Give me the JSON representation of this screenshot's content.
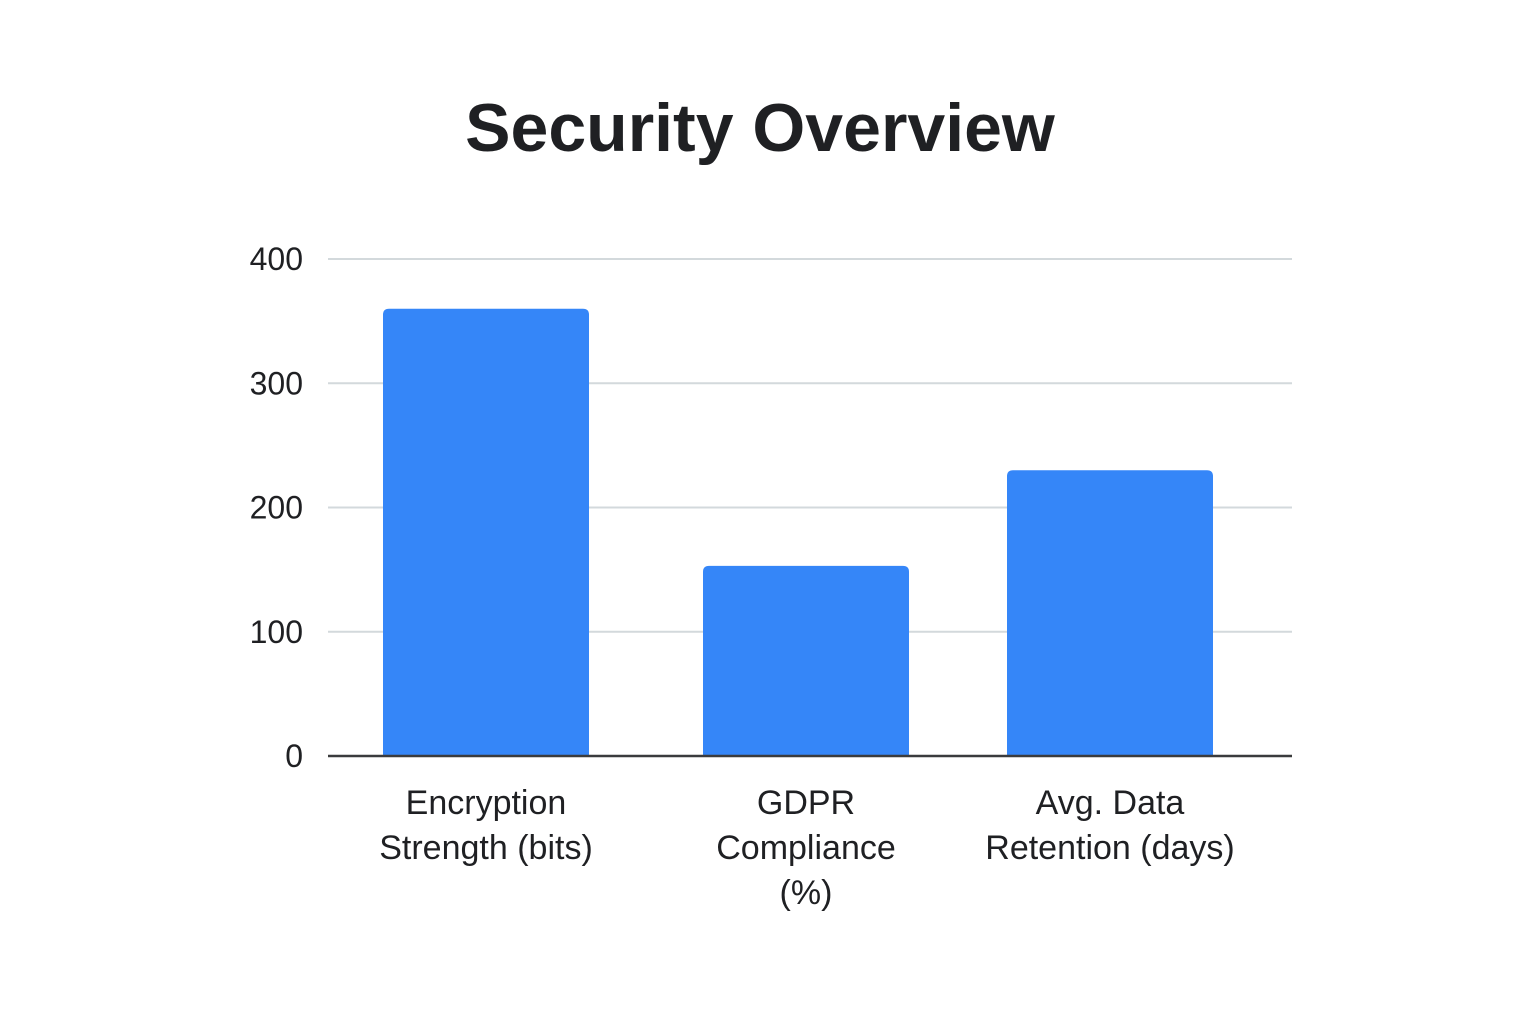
{
  "chart_data": {
    "type": "bar",
    "title": "Security Overview",
    "categories": [
      [
        "Encryption",
        "Strength (bits)"
      ],
      [
        "GDPR",
        "Compliance",
        "(%)"
      ],
      [
        "Avg. Data",
        "Retention (days)"
      ]
    ],
    "values": [
      360,
      153,
      230
    ],
    "ylim": [
      0,
      400
    ],
    "yticks": [
      0,
      100,
      200,
      300,
      400
    ],
    "xlabel": "",
    "ylabel": "",
    "grid": true,
    "bar_color": "#3586f8",
    "grid_color": "#d3d9dc",
    "axis_color": "#3a3b3d"
  }
}
